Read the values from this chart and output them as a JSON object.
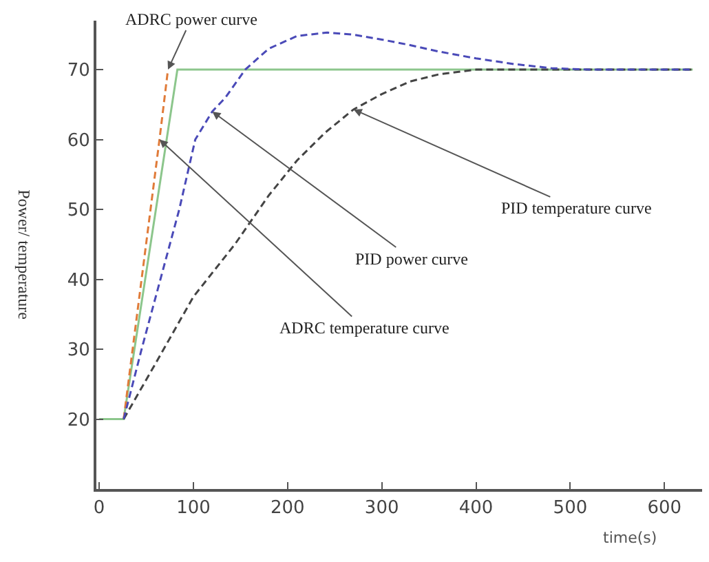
{
  "chart_data": {
    "type": "line",
    "xlabel": "time(s)",
    "ylabel": "Power/ temperature",
    "xlim": [
      -3,
      640
    ],
    "ylim": [
      10,
      77
    ],
    "xticks": [
      0,
      100,
      200,
      300,
      400,
      500,
      600
    ],
    "yticks": [
      20,
      30,
      40,
      50,
      60,
      70
    ],
    "marker": "none",
    "series": [
      {
        "color": "#8cc68c",
        "line_style": "solid",
        "x": [
          0,
          26,
          83,
          630
        ],
        "values": [
          20,
          20,
          70,
          70
        ]
      },
      {
        "color": "#e07b39",
        "line_style": "dashed",
        "x": [
          26,
          64,
          73
        ],
        "values": [
          20,
          60,
          70
        ]
      },
      {
        "color": "#444444",
        "line_style": "dashed",
        "x": [
          26,
          60,
          100,
          144,
          180,
          210,
          240,
          270,
          300,
          330,
          360,
          400,
          630
        ],
        "values": [
          20,
          28,
          37.5,
          45,
          52,
          57,
          61,
          64.3,
          66.5,
          68.3,
          69.3,
          70,
          70
        ]
      },
      {
        "color": "#4a4ab8",
        "line_style": "dashed",
        "x": [
          26,
          45,
          65,
          85,
          102,
          120,
          134,
          155,
          180,
          210,
          242,
          270,
          300,
          330,
          360,
          400,
          440,
          480,
          520,
          630
        ],
        "values": [
          20,
          30,
          40,
          50,
          60,
          64,
          66,
          70,
          73,
          74.8,
          75.3,
          75,
          74.3,
          73.5,
          72.6,
          71.6,
          70.8,
          70.2,
          70,
          70
        ]
      }
    ],
    "annotations": [
      {
        "text": "ADRC power curve",
        "x": 73,
        "y": 70
      },
      {
        "text": "ADRC temperature curve",
        "x": 64,
        "y": 60
      },
      {
        "text": "PID power curve",
        "x": 120,
        "y": 64
      },
      {
        "text": "PID temperature curve",
        "x": 270,
        "y": 64.3
      }
    ]
  }
}
